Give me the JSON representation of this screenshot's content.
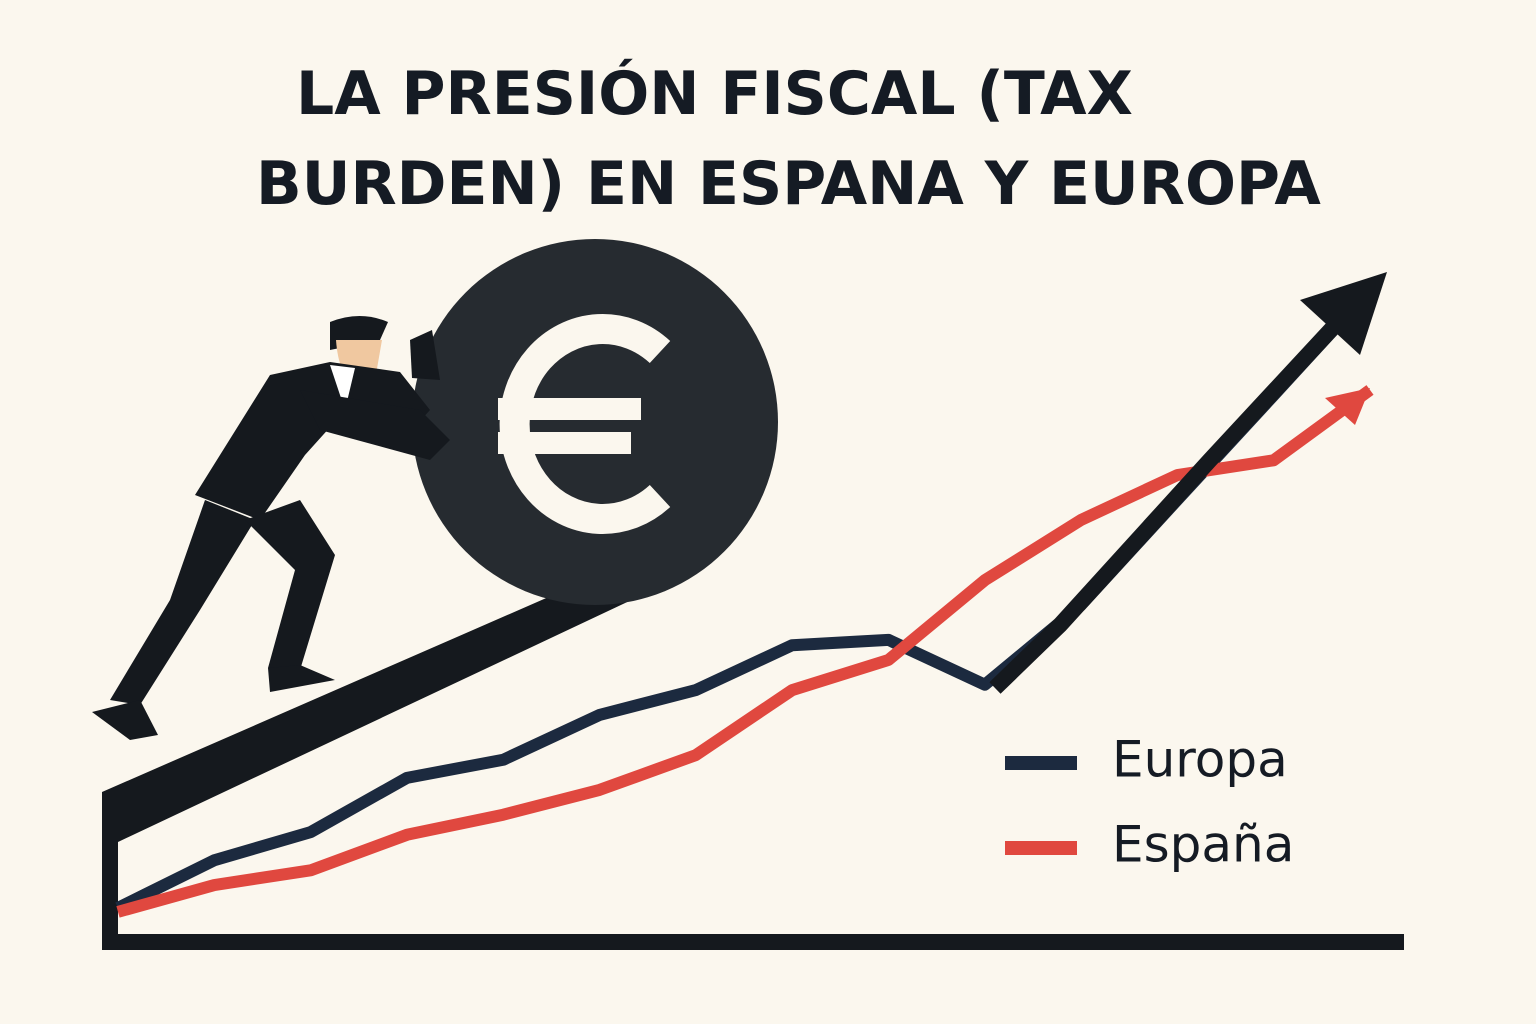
{
  "chart_data": {
    "type": "line",
    "title": [
      "LA PRESIÓN FISCAL (TAX",
      "BURDEN) EN ESPANA Y EUROPA"
    ],
    "categories": [
      null,
      null,
      null,
      null,
      null,
      null,
      null,
      null,
      null,
      null,
      null,
      null,
      null,
      null
    ],
    "series": [
      {
        "name": "Europa",
        "color": "#1c2a3f",
        "values": [
          4.8,
          11.9,
          16.1,
          24.2,
          26.9,
          33.6,
          37.3,
          44,
          44.8,
          38.1,
          50,
          65.7,
          81.3,
          97
        ]
      },
      {
        "name": "España",
        "color": "#e0483f",
        "values": [
          4.2,
          8.2,
          10.4,
          15.7,
          18.7,
          22.4,
          27.6,
          37.3,
          41.8,
          53.7,
          62.7,
          69.4,
          71.6,
          82.1
        ]
      }
    ],
    "ylim": [
      0,
      100
    ],
    "legend": "lower-right"
  }
}
